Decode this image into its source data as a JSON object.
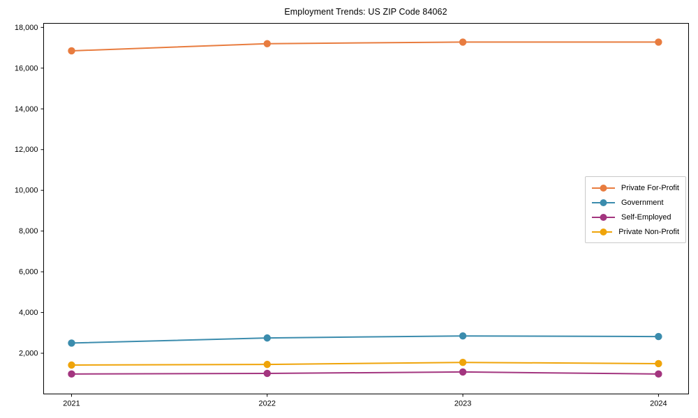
{
  "chart_data": {
    "type": "line",
    "title": "Employment Trends: US ZIP Code 84062",
    "categories": [
      "2021",
      "2022",
      "2023",
      "2024"
    ],
    "series": [
      {
        "name": "Private For-Profit",
        "color": "#E87C3F",
        "values": [
          16850,
          17200,
          17280,
          17280
        ]
      },
      {
        "name": "Government",
        "color": "#3B8CAD",
        "values": [
          2500,
          2750,
          2850,
          2820
        ]
      },
      {
        "name": "Self-Employed",
        "color": "#A3357F",
        "values": [
          980,
          1010,
          1080,
          980
        ]
      },
      {
        "name": "Private Non-Profit",
        "color": "#EFA40A",
        "values": [
          1420,
          1450,
          1550,
          1490
        ]
      }
    ],
    "xlabel": "",
    "ylabel": "",
    "ylim": [
      0,
      18200
    ],
    "yticks": [
      2000,
      4000,
      6000,
      8000,
      10000,
      12000,
      14000,
      16000,
      18000
    ],
    "ytick_labels": [
      "2,000",
      "4,000",
      "6,000",
      "8,000",
      "10,000",
      "12,000",
      "14,000",
      "16,000",
      "18,000"
    ],
    "legend_position": "center right",
    "grid": false,
    "marker": "o",
    "axis_color": "#000000",
    "text_color": "#000000",
    "background_color": "#ffffff"
  }
}
